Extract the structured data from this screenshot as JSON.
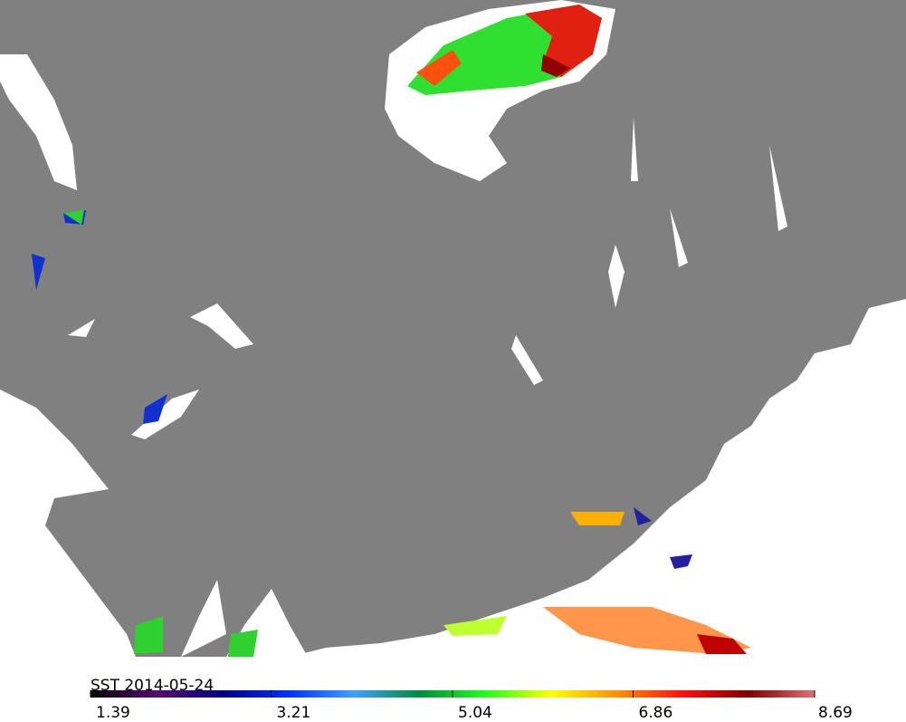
{
  "title": "SST  2014-05-24",
  "colorbar": {
    "range": [
      1.39,
      8.69
    ],
    "ticks": [
      1.39,
      3.21,
      5.04,
      6.86,
      8.69
    ],
    "colors": [
      "#000000",
      "#5a0a6e",
      "#000080",
      "#0030ff",
      "#40a0ff",
      "#008c3c",
      "#20ff20",
      "#ffff00",
      "#ff9000",
      "#ff1010",
      "#800000",
      "#e07070"
    ]
  }
}
